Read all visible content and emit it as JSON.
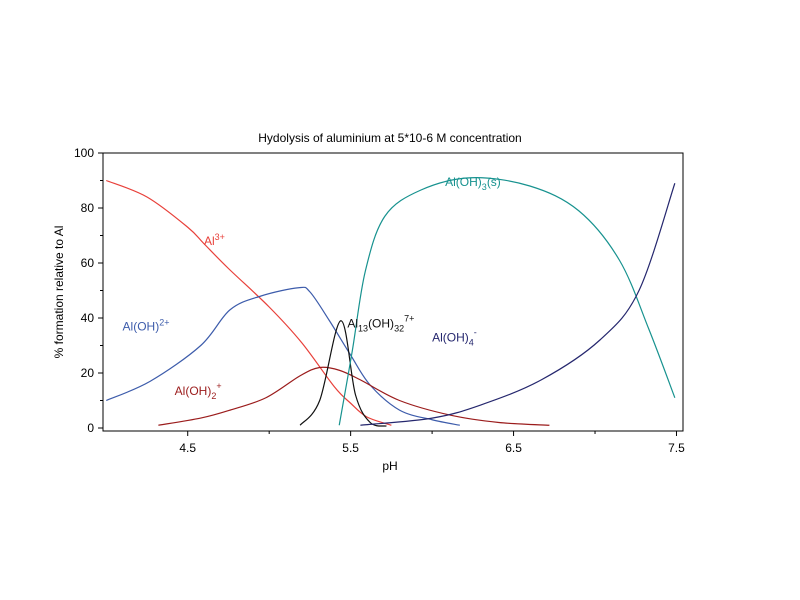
{
  "chart_data": {
    "type": "line",
    "title": "Hydolysis of aluminium  at 5*10-6 M concentration",
    "xlabel": "pH",
    "ylabel": "% formation relative to Al",
    "xlim": [
      3.98,
      7.54
    ],
    "ylim": [
      0,
      100
    ],
    "xticks": [
      "4.5",
      "5.5",
      "6.5",
      "7.5"
    ],
    "yticks": [
      "0",
      "20",
      "40",
      "60",
      "80",
      "100"
    ],
    "grid": false,
    "series": [
      {
        "name": "Al3+",
        "label_main": "Al",
        "label_sup": "3+",
        "color": "#e8403a",
        "x": [
          4.0,
          4.25,
          4.5,
          4.6,
          4.75,
          5.0,
          5.2,
          5.4,
          5.5,
          5.6,
          5.75
        ],
        "y": [
          90,
          84,
          73,
          67,
          58,
          44,
          31,
          15,
          9,
          4,
          1
        ]
      },
      {
        "name": "Al(OH)2+",
        "label_main": "Al(OH)",
        "label_sup": "2+",
        "color": "#3d5cab",
        "x": [
          4.0,
          4.27,
          4.58,
          4.76,
          4.95,
          5.18,
          5.25,
          5.37,
          5.5,
          5.62,
          5.8,
          6.0,
          6.17
        ],
        "y": [
          10,
          17,
          30,
          43,
          48,
          51,
          49.5,
          39,
          26.5,
          15.6,
          6.5,
          3,
          1
        ]
      },
      {
        "name": "Al(OH)2 +",
        "label_main": "Al(OH)",
        "label_sub": "2",
        "label_sup": "+",
        "color": "#9b1c1c",
        "x": [
          4.32,
          4.58,
          4.76,
          4.98,
          5.19,
          5.31,
          5.43,
          5.56,
          5.8,
          6.11,
          6.41,
          6.72
        ],
        "y": [
          1,
          3.6,
          6.5,
          11,
          19,
          22,
          21,
          17.5,
          10,
          4.7,
          2,
          1
        ]
      },
      {
        "name": "Al13(OH)32 7+",
        "label_main": "Al",
        "label_sub": "13",
        "label_mid": "(OH)",
        "label_sub2": "32",
        "label_sup": "7+",
        "color": "#111111",
        "x": [
          5.19,
          5.31,
          5.44,
          5.53,
          5.62,
          5.72
        ],
        "y": [
          1,
          10,
          39,
          12,
          2,
          0.7
        ]
      },
      {
        "name": "Al(OH)3(s)",
        "label_main": "Al(OH)",
        "label_sub": "3",
        "label_end": "(s)",
        "color": "#17928f",
        "x": [
          5.43,
          5.51,
          5.59,
          5.71,
          5.93,
          6.24,
          6.6,
          6.9,
          7.15,
          7.33,
          7.49
        ],
        "y": [
          1,
          28,
          57,
          77,
          86.5,
          91,
          88,
          79,
          61,
          36,
          11
        ]
      },
      {
        "name": "Al(OH)4-",
        "label_main": "Al(OH)",
        "label_sub": "4",
        "label_sup": "-",
        "color": "#25276e",
        "x": [
          5.56,
          6.0,
          6.3,
          6.67,
          7.03,
          7.27,
          7.49
        ],
        "y": [
          1,
          3.6,
          8.4,
          17.5,
          32,
          50,
          89
        ]
      }
    ]
  }
}
